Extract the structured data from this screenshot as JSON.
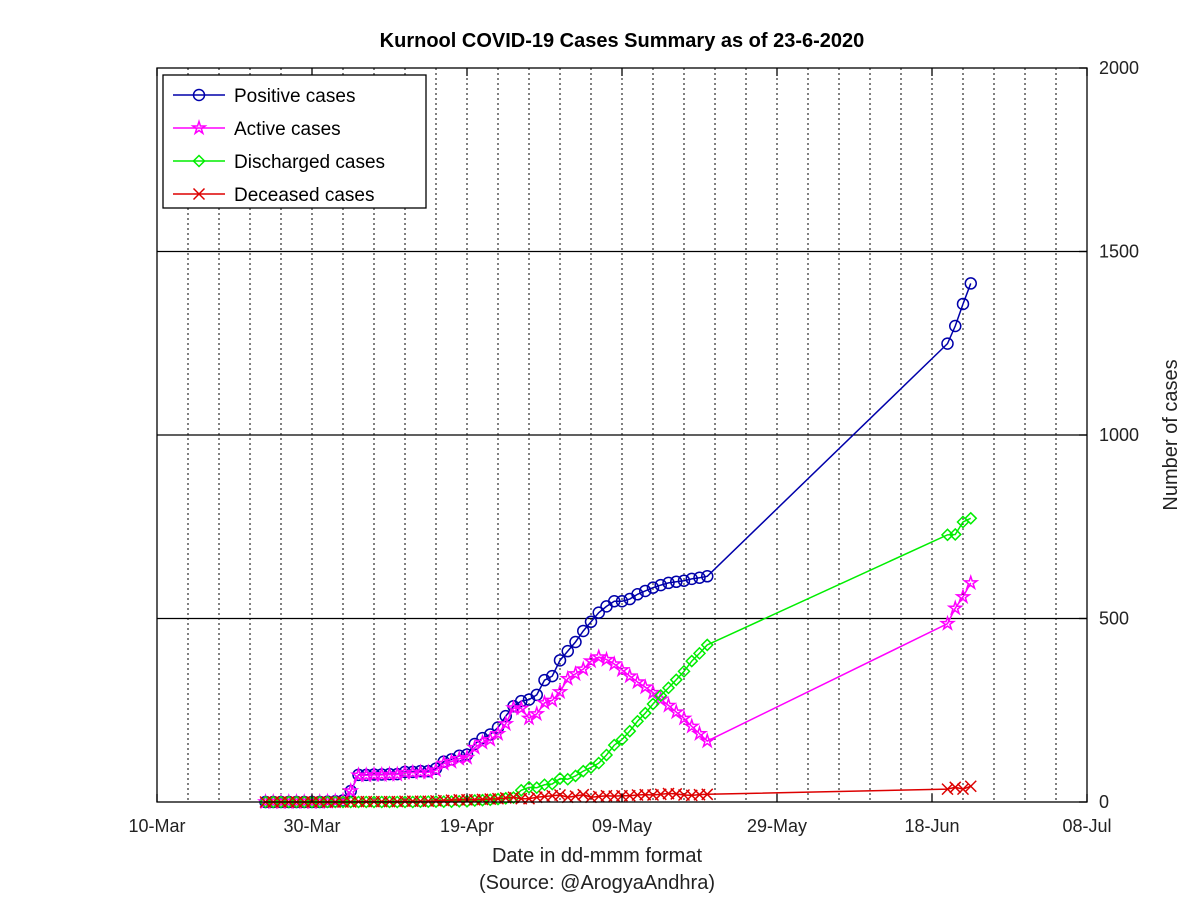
{
  "chart_data": {
    "type": "line",
    "title": "Kurnool COVID-19 Cases Summary as of 23-6-2020",
    "xlabel": "Date in dd-mmm format",
    "source_note": "(Source: @ArogyaAndhra)",
    "ylabel": "Number of cases",
    "y_axis_side": "right",
    "xlim": [
      "2020-03-10",
      "2020-07-08"
    ],
    "ylim": [
      0,
      2000
    ],
    "x_ticks": [
      {
        "date": "2020-03-10",
        "label": "10-Mar"
      },
      {
        "date": "2020-03-30",
        "label": "30-Mar"
      },
      {
        "date": "2020-04-19",
        "label": "19-Apr"
      },
      {
        "date": "2020-05-09",
        "label": "09-May"
      },
      {
        "date": "2020-05-29",
        "label": "29-May"
      },
      {
        "date": "2020-06-18",
        "label": "18-Jun"
      },
      {
        "date": "2020-07-08",
        "label": "08-Jul"
      }
    ],
    "y_ticks": [
      0,
      500,
      1000,
      1500,
      2000
    ],
    "minor_x_grid": "dotted, every 4 days",
    "major_y_grid": true,
    "legend_position": "top-left",
    "series": [
      {
        "name": "Positive cases",
        "color": "#0000aa",
        "marker": "circle",
        "points": [
          [
            "2020-03-24",
            0
          ],
          [
            "2020-03-25",
            0
          ],
          [
            "2020-03-26",
            0
          ],
          [
            "2020-03-27",
            0
          ],
          [
            "2020-03-28",
            0
          ],
          [
            "2020-03-29",
            0
          ],
          [
            "2020-03-30",
            0
          ],
          [
            "2020-03-31",
            0
          ],
          [
            "2020-04-01",
            1
          ],
          [
            "2020-04-02",
            2
          ],
          [
            "2020-04-03",
            4
          ],
          [
            "2020-04-04",
            30
          ],
          [
            "2020-04-05",
            74
          ],
          [
            "2020-04-06",
            74
          ],
          [
            "2020-04-07",
            75
          ],
          [
            "2020-04-08",
            75
          ],
          [
            "2020-04-09",
            76
          ],
          [
            "2020-04-10",
            76
          ],
          [
            "2020-04-11",
            82
          ],
          [
            "2020-04-12",
            82
          ],
          [
            "2020-04-13",
            84
          ],
          [
            "2020-04-14",
            84
          ],
          [
            "2020-04-15",
            91
          ],
          [
            "2020-04-16",
            110
          ],
          [
            "2020-04-17",
            116
          ],
          [
            "2020-04-18",
            126
          ],
          [
            "2020-04-19",
            129
          ],
          [
            "2020-04-20",
            158
          ],
          [
            "2020-04-21",
            174
          ],
          [
            "2020-04-22",
            184
          ],
          [
            "2020-04-23",
            203
          ],
          [
            "2020-04-24",
            234
          ],
          [
            "2020-04-25",
            261
          ],
          [
            "2020-04-26",
            275
          ],
          [
            "2020-04-27",
            279
          ],
          [
            "2020-04-28",
            292
          ],
          [
            "2020-04-29",
            332
          ],
          [
            "2020-04-30",
            343
          ],
          [
            "2020-05-01",
            386
          ],
          [
            "2020-05-02",
            411
          ],
          [
            "2020-05-03",
            436
          ],
          [
            "2020-05-04",
            466
          ],
          [
            "2020-05-05",
            491
          ],
          [
            "2020-05-06",
            516
          ],
          [
            "2020-05-07",
            533
          ],
          [
            "2020-05-08",
            547
          ],
          [
            "2020-05-09",
            547
          ],
          [
            "2020-05-10",
            553
          ],
          [
            "2020-05-11",
            566
          ],
          [
            "2020-05-12",
            575
          ],
          [
            "2020-05-13",
            584
          ],
          [
            "2020-05-14",
            591
          ],
          [
            "2020-05-15",
            597
          ],
          [
            "2020-05-16",
            600
          ],
          [
            "2020-05-17",
            603
          ],
          [
            "2020-05-18",
            608
          ],
          [
            "2020-05-19",
            611
          ],
          [
            "2020-05-20",
            615
          ],
          [
            "2020-06-20",
            1249
          ],
          [
            "2020-06-21",
            1297
          ],
          [
            "2020-06-22",
            1357
          ],
          [
            "2020-06-23",
            1413
          ]
        ]
      },
      {
        "name": "Active cases",
        "color": "#ff00ff",
        "marker": "star",
        "points": [
          [
            "2020-03-24",
            0
          ],
          [
            "2020-03-25",
            0
          ],
          [
            "2020-03-26",
            0
          ],
          [
            "2020-03-27",
            0
          ],
          [
            "2020-03-28",
            0
          ],
          [
            "2020-03-29",
            0
          ],
          [
            "2020-03-30",
            0
          ],
          [
            "2020-03-31",
            0
          ],
          [
            "2020-04-01",
            1
          ],
          [
            "2020-04-02",
            2
          ],
          [
            "2020-04-03",
            4
          ],
          [
            "2020-04-04",
            30
          ],
          [
            "2020-04-05",
            73
          ],
          [
            "2020-04-06",
            73
          ],
          [
            "2020-04-07",
            74
          ],
          [
            "2020-04-08",
            74
          ],
          [
            "2020-04-09",
            75
          ],
          [
            "2020-04-10",
            75
          ],
          [
            "2020-04-11",
            80
          ],
          [
            "2020-04-12",
            80
          ],
          [
            "2020-04-13",
            81
          ],
          [
            "2020-04-14",
            81
          ],
          [
            "2020-04-15",
            87
          ],
          [
            "2020-04-16",
            105
          ],
          [
            "2020-04-17",
            110
          ],
          [
            "2020-04-18",
            118
          ],
          [
            "2020-04-19",
            121
          ],
          [
            "2020-04-20",
            148
          ],
          [
            "2020-04-21",
            162
          ],
          [
            "2020-04-22",
            170
          ],
          [
            "2020-04-23",
            186
          ],
          [
            "2020-04-24",
            213
          ],
          [
            "2020-04-25",
            256
          ],
          [
            "2020-04-26",
            255
          ],
          [
            "2020-04-27",
            228
          ],
          [
            "2020-04-28",
            240
          ],
          [
            "2020-04-29",
            270
          ],
          [
            "2020-04-30",
            277
          ],
          [
            "2020-05-01",
            300
          ],
          [
            "2020-05-02",
            336
          ],
          [
            "2020-05-03",
            349
          ],
          [
            "2020-05-04",
            362
          ],
          [
            "2020-05-05",
            384
          ],
          [
            "2020-05-06",
            395
          ],
          [
            "2020-05-07",
            388
          ],
          [
            "2020-05-08",
            376
          ],
          [
            "2020-05-09",
            360
          ],
          [
            "2020-05-10",
            343
          ],
          [
            "2020-05-11",
            327
          ],
          [
            "2020-05-12",
            313
          ],
          [
            "2020-05-13",
            298
          ],
          [
            "2020-05-14",
            280
          ],
          [
            "2020-05-15",
            263
          ],
          [
            "2020-05-16",
            245
          ],
          [
            "2020-05-17",
            228
          ],
          [
            "2020-05-18",
            206
          ],
          [
            "2020-05-19",
            186
          ],
          [
            "2020-05-20",
            166
          ],
          [
            "2020-06-20",
            486
          ],
          [
            "2020-06-21",
            528
          ],
          [
            "2020-06-22",
            559
          ],
          [
            "2020-06-23",
            597
          ]
        ]
      },
      {
        "name": "Discharged cases",
        "color": "#00ee00",
        "marker": "diamond",
        "points": [
          [
            "2020-03-24",
            0
          ],
          [
            "2020-03-25",
            0
          ],
          [
            "2020-03-26",
            0
          ],
          [
            "2020-03-27",
            0
          ],
          [
            "2020-03-28",
            0
          ],
          [
            "2020-03-29",
            0
          ],
          [
            "2020-03-30",
            0
          ],
          [
            "2020-03-31",
            0
          ],
          [
            "2020-04-01",
            0
          ],
          [
            "2020-04-02",
            0
          ],
          [
            "2020-04-03",
            0
          ],
          [
            "2020-04-04",
            0
          ],
          [
            "2020-04-05",
            0
          ],
          [
            "2020-04-06",
            0
          ],
          [
            "2020-04-07",
            0
          ],
          [
            "2020-04-08",
            0
          ],
          [
            "2020-04-09",
            0
          ],
          [
            "2020-04-10",
            0
          ],
          [
            "2020-04-11",
            0
          ],
          [
            "2020-04-12",
            0
          ],
          [
            "2020-04-13",
            1
          ],
          [
            "2020-04-14",
            1
          ],
          [
            "2020-04-15",
            1
          ],
          [
            "2020-04-16",
            1
          ],
          [
            "2020-04-17",
            1
          ],
          [
            "2020-04-18",
            2
          ],
          [
            "2020-04-19",
            2
          ],
          [
            "2020-04-20",
            4
          ],
          [
            "2020-04-21",
            5
          ],
          [
            "2020-04-22",
            6
          ],
          [
            "2020-04-23",
            8
          ],
          [
            "2020-04-24",
            10
          ],
          [
            "2020-04-25",
            12
          ],
          [
            "2020-04-26",
            32
          ],
          [
            "2020-04-27",
            40
          ],
          [
            "2020-04-28",
            39
          ],
          [
            "2020-04-29",
            47
          ],
          [
            "2020-04-30",
            49
          ],
          [
            "2020-05-01",
            64
          ],
          [
            "2020-05-02",
            62
          ],
          [
            "2020-05-03",
            71
          ],
          [
            "2020-05-04",
            84
          ],
          [
            "2020-05-05",
            94
          ],
          [
            "2020-05-06",
            106
          ],
          [
            "2020-05-07",
            128
          ],
          [
            "2020-05-08",
            155
          ],
          [
            "2020-05-09",
            170
          ],
          [
            "2020-05-10",
            193
          ],
          [
            "2020-05-11",
            220
          ],
          [
            "2020-05-12",
            242
          ],
          [
            "2020-05-13",
            267
          ],
          [
            "2020-05-14",
            290
          ],
          [
            "2020-05-15",
            311
          ],
          [
            "2020-05-16",
            333
          ],
          [
            "2020-05-17",
            356
          ],
          [
            "2020-05-18",
            384
          ],
          [
            "2020-05-19",
            405
          ],
          [
            "2020-05-20",
            428
          ],
          [
            "2020-06-20",
            728
          ],
          [
            "2020-06-21",
            729
          ],
          [
            "2020-06-22",
            763
          ],
          [
            "2020-06-23",
            773
          ]
        ]
      },
      {
        "name": "Deceased cases",
        "color": "#dd0000",
        "marker": "x",
        "points": [
          [
            "2020-03-24",
            0
          ],
          [
            "2020-03-25",
            0
          ],
          [
            "2020-03-26",
            0
          ],
          [
            "2020-03-27",
            0
          ],
          [
            "2020-03-28",
            0
          ],
          [
            "2020-03-29",
            0
          ],
          [
            "2020-03-30",
            0
          ],
          [
            "2020-03-31",
            0
          ],
          [
            "2020-04-01",
            0
          ],
          [
            "2020-04-02",
            0
          ],
          [
            "2020-04-03",
            0
          ],
          [
            "2020-04-04",
            0
          ],
          [
            "2020-04-05",
            1
          ],
          [
            "2020-04-06",
            1
          ],
          [
            "2020-04-07",
            1
          ],
          [
            "2020-04-08",
            1
          ],
          [
            "2020-04-09",
            1
          ],
          [
            "2020-04-10",
            1
          ],
          [
            "2020-04-11",
            2
          ],
          [
            "2020-04-12",
            2
          ],
          [
            "2020-04-13",
            2
          ],
          [
            "2020-04-14",
            2
          ],
          [
            "2020-04-15",
            3
          ],
          [
            "2020-04-16",
            4
          ],
          [
            "2020-04-17",
            5
          ],
          [
            "2020-04-18",
            6
          ],
          [
            "2020-04-19",
            6
          ],
          [
            "2020-04-20",
            6
          ],
          [
            "2020-04-21",
            7
          ],
          [
            "2020-04-22",
            8
          ],
          [
            "2020-04-23",
            9
          ],
          [
            "2020-04-24",
            11
          ],
          [
            "2020-04-25",
            13
          ],
          [
            "2020-04-26",
            9
          ],
          [
            "2020-04-27",
            9
          ],
          [
            "2020-04-28",
            13
          ],
          [
            "2020-04-29",
            15
          ],
          [
            "2020-04-30",
            17
          ],
          [
            "2020-05-01",
            19
          ],
          [
            "2020-05-02",
            13
          ],
          [
            "2020-05-03",
            16
          ],
          [
            "2020-05-04",
            20
          ],
          [
            "2020-05-05",
            13
          ],
          [
            "2020-05-06",
            15
          ],
          [
            "2020-05-07",
            17
          ],
          [
            "2020-05-08",
            16
          ],
          [
            "2020-05-09",
            17
          ],
          [
            "2020-05-10",
            17
          ],
          [
            "2020-05-11",
            19
          ],
          [
            "2020-05-12",
            20
          ],
          [
            "2020-05-13",
            19
          ],
          [
            "2020-05-14",
            21
          ],
          [
            "2020-05-15",
            23
          ],
          [
            "2020-05-16",
            22
          ],
          [
            "2020-05-17",
            19
          ],
          [
            "2020-05-18",
            18
          ],
          [
            "2020-05-19",
            20
          ],
          [
            "2020-05-20",
            21
          ],
          [
            "2020-06-20",
            35
          ],
          [
            "2020-06-21",
            40
          ],
          [
            "2020-06-22",
            35
          ],
          [
            "2020-06-23",
            43
          ]
        ]
      }
    ]
  }
}
